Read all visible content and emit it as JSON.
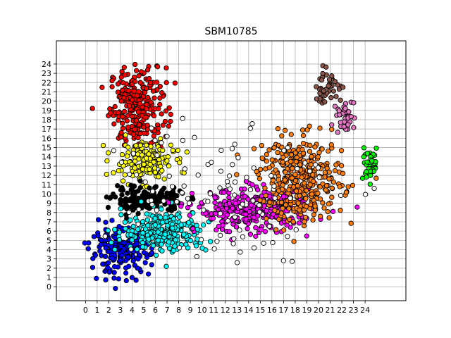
{
  "chart_data": {
    "type": "scatter",
    "title": "SBM10785",
    "xlabel": "",
    "ylabel": "",
    "xlim": [
      -2.5,
      27.5
    ],
    "ylim": [
      -1.5,
      26.5
    ],
    "x_ticks": [
      0,
      1,
      2,
      3,
      4,
      5,
      6,
      7,
      8,
      9,
      10,
      11,
      12,
      13,
      14,
      15,
      16,
      17,
      18,
      19,
      20,
      21,
      22,
      23,
      24
    ],
    "y_ticks": [
      0,
      1,
      2,
      3,
      4,
      5,
      6,
      7,
      8,
      9,
      10,
      11,
      12,
      13,
      14,
      15,
      16,
      17,
      18,
      19,
      20,
      21,
      22,
      23,
      24
    ],
    "grid": true,
    "clusters": [
      {
        "color": "#ff0000",
        "cx": 4.5,
        "cy": 19.5,
        "sx": 1.6,
        "sy": 2.8,
        "n": 260
      },
      {
        "color": "#ffff00",
        "cx": 5.0,
        "cy": 13.5,
        "sx": 1.7,
        "sy": 1.4,
        "n": 170
      },
      {
        "color": "#000000",
        "cx": 5.3,
        "cy": 9.4,
        "sx": 2.0,
        "sy": 0.9,
        "n": 170
      },
      {
        "color": "#0000ff",
        "cx": 3.0,
        "cy": 3.8,
        "sx": 1.7,
        "sy": 1.6,
        "n": 210
      },
      {
        "color": "#00ffff",
        "cx": 6.8,
        "cy": 6.0,
        "sx": 2.4,
        "sy": 1.5,
        "n": 260
      },
      {
        "color": "#ff00ff",
        "cx": 14.5,
        "cy": 8.2,
        "sx": 3.3,
        "sy": 1.5,
        "n": 320
      },
      {
        "color": "#ff7f0e",
        "cx": 18.5,
        "cy": 11.5,
        "sx": 2.4,
        "sy": 3.0,
        "n": 360
      },
      {
        "color": "#8c564b",
        "cx": 20.7,
        "cy": 21.5,
        "sx": 0.9,
        "sy": 1.2,
        "n": 45
      },
      {
        "color": "#e377c2",
        "cx": 22.3,
        "cy": 18.3,
        "sx": 0.5,
        "sy": 1.2,
        "n": 40
      },
      {
        "color": "#00ff00",
        "cx": 24.4,
        "cy": 13.2,
        "sx": 0.6,
        "sy": 1.0,
        "n": 45
      },
      {
        "color": "#ffffff",
        "cx": 11.0,
        "cy": 11.0,
        "sx": 7.0,
        "sy": 5.5,
        "n": 110
      }
    ]
  }
}
